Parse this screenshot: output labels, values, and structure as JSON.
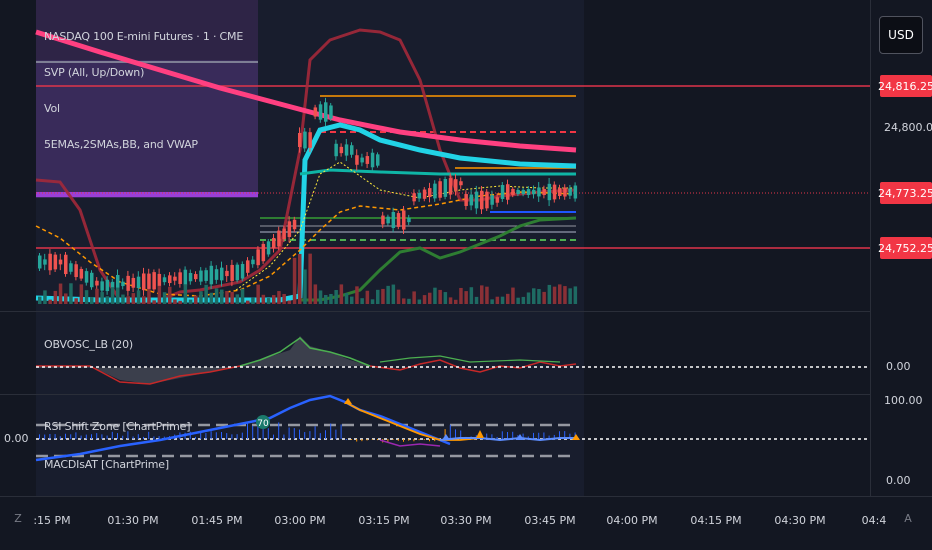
{
  "symbol": {
    "title": "NASDAQ 100 E-mini Futures · 1 · CME"
  },
  "indicators": {
    "svp": "SVP (All, Up/Down)",
    "vol": "Vol",
    "emas": "5EMAs,2SMAs,BB, and VWAP",
    "obv": "OBVOSC_LB (20)",
    "rsi": "RSI Shift Zone [ChartPrime]",
    "macd": "MACDIsAT [ChartPrime]"
  },
  "currency": "USD",
  "price_tags": [
    {
      "value": "24,816.25",
      "color": "#f23645"
    },
    {
      "value": "24,773.25",
      "color": "#f23645"
    },
    {
      "value": "24,752.25",
      "color": "#f23645"
    }
  ],
  "price_axis": {
    "main_label": "24,800.00",
    "obv_zero": "0.00",
    "rsi_top": "100.00",
    "rsi_bottom": "0.00",
    "left_zero": "0.00"
  },
  "rsi_badge": "70",
  "time_axis": [
    ":15 PM",
    "01:30 PM",
    "01:45 PM",
    "03:00 PM",
    "03:15 PM",
    "03:30 PM",
    "03:45 PM",
    "04:00 PM",
    "04:15 PM",
    "04:30 PM",
    "04:4"
  ],
  "corner_buttons": {
    "left": "Z",
    "right": "A"
  },
  "colors": {
    "background": "#131722",
    "up": "#26a69a",
    "down": "#ef5350",
    "vwap": "#ff4081",
    "ema_cyan": "#22d3e6",
    "bb": "#b2323f",
    "purple_zone": "#3d2a63"
  }
}
